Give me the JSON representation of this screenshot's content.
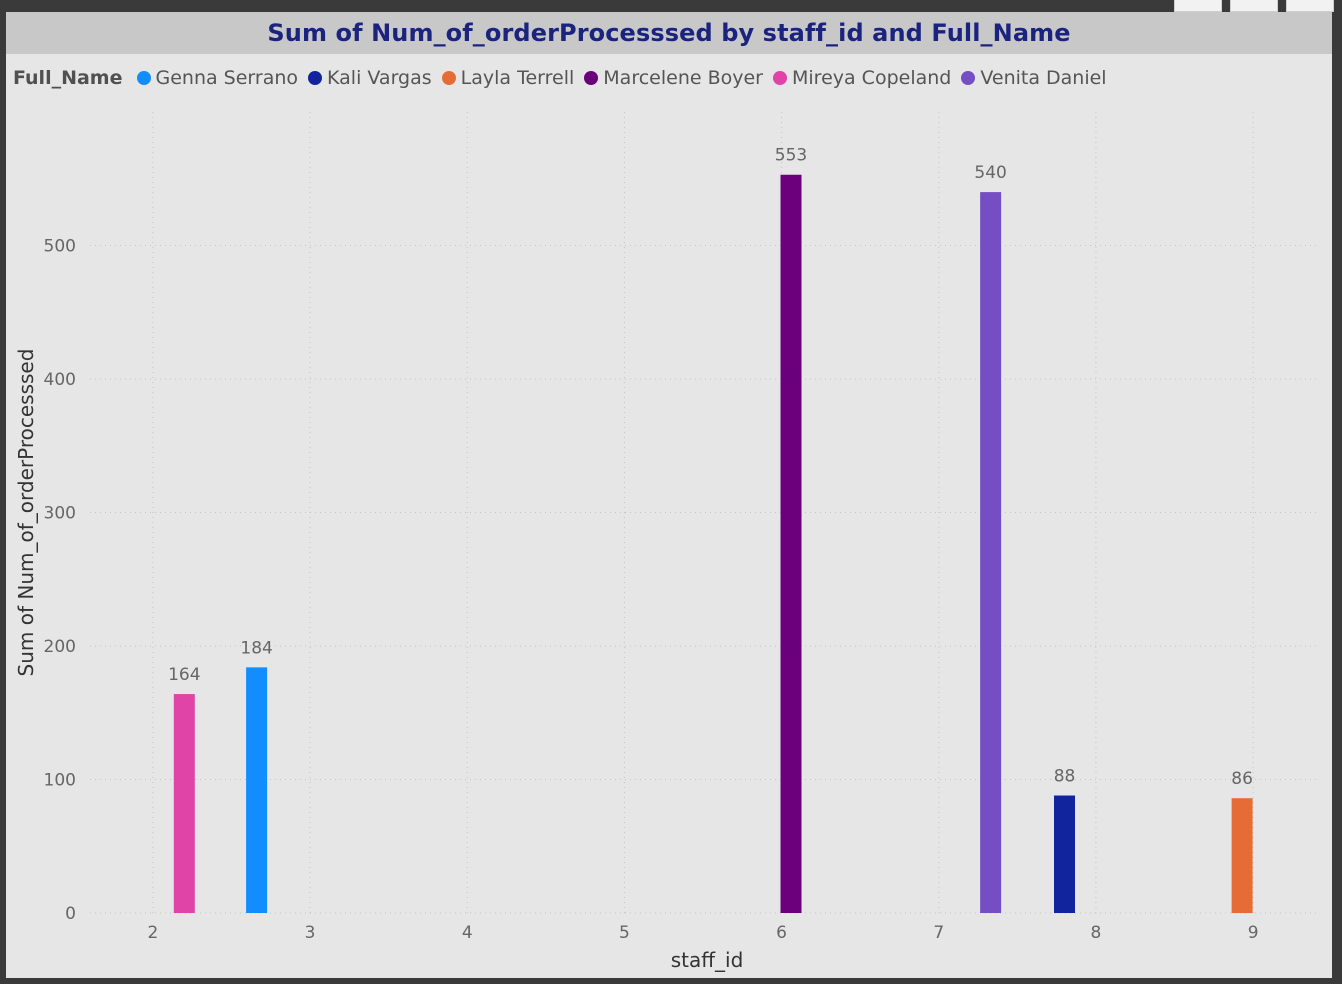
{
  "chart_data": {
    "type": "bar",
    "title": "Sum of Num_of_orderProcesssed by staff_id and Full_Name",
    "xlabel": "staff_id",
    "ylabel": "Sum of Num_of_orderProcesssed",
    "legend_title": "Full_Name",
    "legend_position": "top-left",
    "grid": true,
    "xlim": [
      1.6,
      9.4
    ],
    "ylim": [
      0,
      600
    ],
    "x_ticks": [
      2,
      3,
      4,
      5,
      6,
      7,
      8,
      9
    ],
    "y_ticks": [
      0,
      100,
      200,
      300,
      400,
      500
    ],
    "series": [
      {
        "name": "Genna Serrano",
        "color": "#118dff",
        "x": 2.66,
        "value": 184
      },
      {
        "name": "Kali Vargas",
        "color": "#12239e",
        "x": 7.8,
        "value": 88
      },
      {
        "name": "Layla Terrell",
        "color": "#e66c37",
        "x": 8.93,
        "value": 86
      },
      {
        "name": "Marcelene Boyer",
        "color": "#6b007b",
        "x": 6.06,
        "value": 553
      },
      {
        "name": "Mireya Copeland",
        "color": "#e044a7",
        "x": 2.2,
        "value": 164
      },
      {
        "name": "Venita Daniel",
        "color": "#744ec2",
        "x": 7.33,
        "value": 540
      }
    ]
  }
}
